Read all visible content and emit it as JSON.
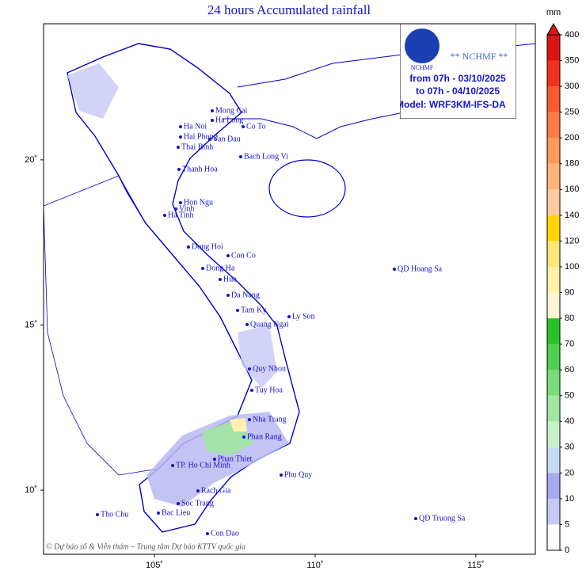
{
  "title": "24 hours Accumulated rainfall",
  "map": {
    "lon_ticks": [
      {
        "value": 105,
        "label": "105˚"
      },
      {
        "value": 110,
        "label": "110˚"
      },
      {
        "value": 115,
        "label": "115˚"
      }
    ],
    "lat_ticks": [
      {
        "value": 10,
        "label": "10˚"
      },
      {
        "value": 15,
        "label": "15˚"
      },
      {
        "value": 20,
        "label": "20˚"
      }
    ],
    "lonlim": [
      101.55,
      116.85
    ],
    "latlim": [
      8.06,
      24.12
    ],
    "places": [
      "Mong Cai",
      "Ha Long",
      "Ha Noi",
      "Co To",
      "Hai Phong",
      "Van Dau",
      "Thai Binh",
      "Bach Long Vi",
      "Thanh Hoa",
      "Hon Ngu",
      "Vinh",
      "Ha Tinh",
      "Dong Hoi",
      "Con Co",
      "Dong Ha",
      "Hue",
      "Da Nang",
      "Tam Ky",
      "Ly Son",
      "Quang Ngai",
      "Quy Nhon",
      "Tuy Hoa",
      "Nha Trang",
      "Phan Rang",
      "Phan Thiet",
      "TP. Ho Chi Minh",
      "Phu Quy",
      "Rach Gia",
      "Soc Trang",
      "Tho Chu",
      "Bac Lieu",
      "Con Dao",
      "QD Hoang Sa",
      "QD Truong Sa"
    ],
    "copyright": "© Dự báo số & Viễn thám – Trung tâm Dự báo KTTV quốc gia"
  },
  "info": {
    "logo": "NCHMF",
    "agency": "** NCHMF **",
    "from": "from 07h - 03/10/2025",
    "to": "to 07h - 04/10/2025",
    "model": "Model: WRF3KM-IFS-DA"
  },
  "colorbar": {
    "unit": "mm",
    "levels": [
      0,
      5,
      10,
      20,
      30,
      40,
      50,
      60,
      70,
      80,
      90,
      100,
      120,
      140,
      160,
      180,
      200,
      250,
      300,
      350,
      400
    ],
    "colors": [
      "#ffffff",
      "#c8c8f5",
      "#a8a8f0",
      "#c4dcf0",
      "#c8f0c8",
      "#a0e6a0",
      "#78dc78",
      "#50d050",
      "#28c028",
      "#fff5d2",
      "#fff0aa",
      "#ffe678",
      "#ffd700",
      "#ffcaa0",
      "#ffb478",
      "#ff9a5a",
      "#ff7a46",
      "#ff5a32",
      "#f0321e",
      "#dc1414"
    ]
  }
}
